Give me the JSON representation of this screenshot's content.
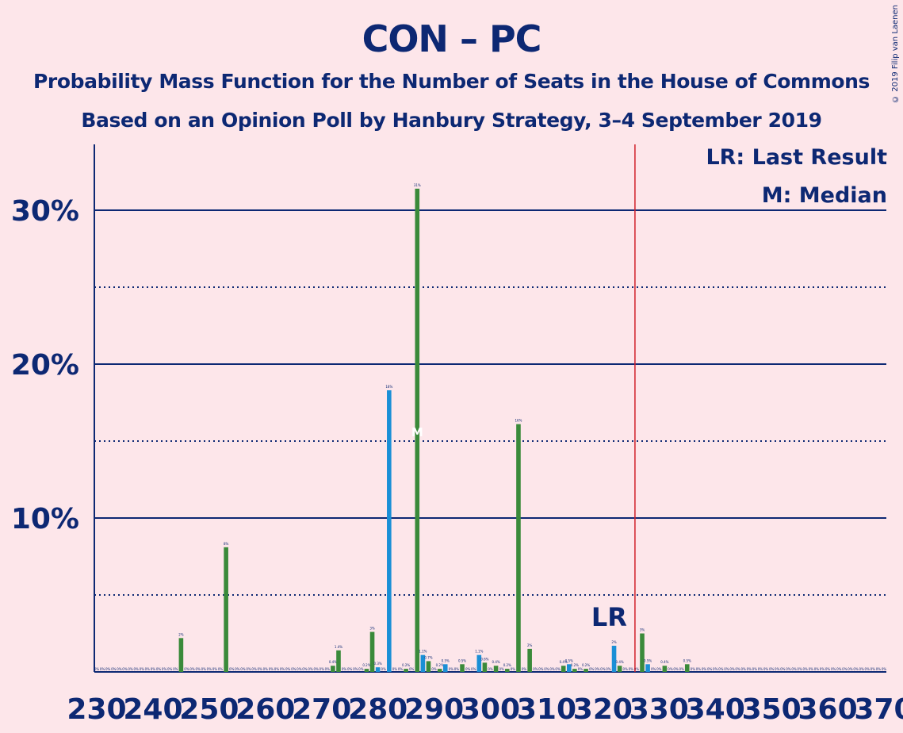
{
  "title": "CON – PC",
  "subtitle": "Probability Mass Function for the Number of Seats in the House of Commons",
  "subtitle2": "Based on an Opinion Poll by Hanbury Strategy, 3–4 September 2019",
  "copyright": "© 2019 Filip van Laenen",
  "legend": {
    "lr": "LR: Last Result",
    "median": "M: Median"
  },
  "colors": {
    "background": "#fde6ea",
    "axis_text": "#0d2873",
    "con": "#3a8a3a",
    "pc": "#1a8fd6",
    "last_result_line": "#d0202a"
  },
  "chart_data": {
    "type": "bar",
    "xlabel": "",
    "ylabel": "",
    "xlim": [
      230,
      370
    ],
    "ylim": [
      0,
      34
    ],
    "x_ticks": [
      230,
      240,
      250,
      260,
      270,
      280,
      290,
      300,
      310,
      320,
      330,
      340,
      350,
      360,
      370
    ],
    "y_ticks": [
      {
        "value": 10,
        "label": "10%"
      },
      {
        "value": 20,
        "label": "20%"
      },
      {
        "value": 30,
        "label": "30%"
      }
    ],
    "y_dotted": [
      5,
      15,
      25
    ],
    "last_result": {
      "seats": 326,
      "label": "LR"
    },
    "median": {
      "seats": 287,
      "label": "M"
    },
    "bars": [
      {
        "seats": 245,
        "value": 2.2,
        "label": "2%",
        "party": "con"
      },
      {
        "seats": 253,
        "value": 8.1,
        "label": "8%",
        "party": "con"
      },
      {
        "seats": 272,
        "value": 0.4,
        "label": "0.4%",
        "party": "con"
      },
      {
        "seats": 273,
        "value": 1.4,
        "label": "1.4%",
        "party": "con"
      },
      {
        "seats": 278,
        "value": 0.2,
        "label": "0.2%",
        "party": "con"
      },
      {
        "seats": 279,
        "value": 2.6,
        "label": "3%",
        "party": "con"
      },
      {
        "seats": 280,
        "value": 0.3,
        "label": "0.3%",
        "party": "pc"
      },
      {
        "seats": 282,
        "value": 18.3,
        "label": "18%",
        "party": "pc"
      },
      {
        "seats": 285,
        "value": 0.2,
        "label": "0.2%",
        "party": "con"
      },
      {
        "seats": 287,
        "value": 31.4,
        "label": "31%",
        "party": "con"
      },
      {
        "seats": 288,
        "value": 1.1,
        "label": "1.1%",
        "party": "pc"
      },
      {
        "seats": 289,
        "value": 0.7,
        "label": "0.7%",
        "party": "con"
      },
      {
        "seats": 291,
        "value": 0.2,
        "label": "0.2%",
        "party": "con"
      },
      {
        "seats": 292,
        "value": 0.5,
        "label": "0.5%",
        "party": "pc"
      },
      {
        "seats": 295,
        "value": 0.5,
        "label": "0.5%",
        "party": "con"
      },
      {
        "seats": 298,
        "value": 1.1,
        "label": "1.1%",
        "party": "pc"
      },
      {
        "seats": 299,
        "value": 0.6,
        "label": "0.6%",
        "party": "con"
      },
      {
        "seats": 301,
        "value": 0.4,
        "label": "0.4%",
        "party": "con"
      },
      {
        "seats": 303,
        "value": 0.2,
        "label": "0.2%",
        "party": "con"
      },
      {
        "seats": 305,
        "value": 16.1,
        "label": "16%",
        "party": "con"
      },
      {
        "seats": 307,
        "value": 1.5,
        "label": "2%",
        "party": "con"
      },
      {
        "seats": 313,
        "value": 0.4,
        "label": "0.4%",
        "party": "con"
      },
      {
        "seats": 314,
        "value": 0.5,
        "label": "0.5%",
        "party": "pc"
      },
      {
        "seats": 315,
        "value": 0.2,
        "label": "0.2%",
        "party": "con"
      },
      {
        "seats": 317,
        "value": 0.2,
        "label": "0.2%",
        "party": "con"
      },
      {
        "seats": 322,
        "value": 1.7,
        "label": "2%",
        "party": "pc"
      },
      {
        "seats": 323,
        "value": 0.4,
        "label": "0.4%",
        "party": "con"
      },
      {
        "seats": 327,
        "value": 2.5,
        "label": "3%",
        "party": "con"
      },
      {
        "seats": 328,
        "value": 0.5,
        "label": "0.5%",
        "party": "pc"
      },
      {
        "seats": 331,
        "value": 0.4,
        "label": "0.4%",
        "party": "con"
      },
      {
        "seats": 335,
        "value": 0.5,
        "label": "0.5%",
        "party": "con"
      }
    ]
  }
}
